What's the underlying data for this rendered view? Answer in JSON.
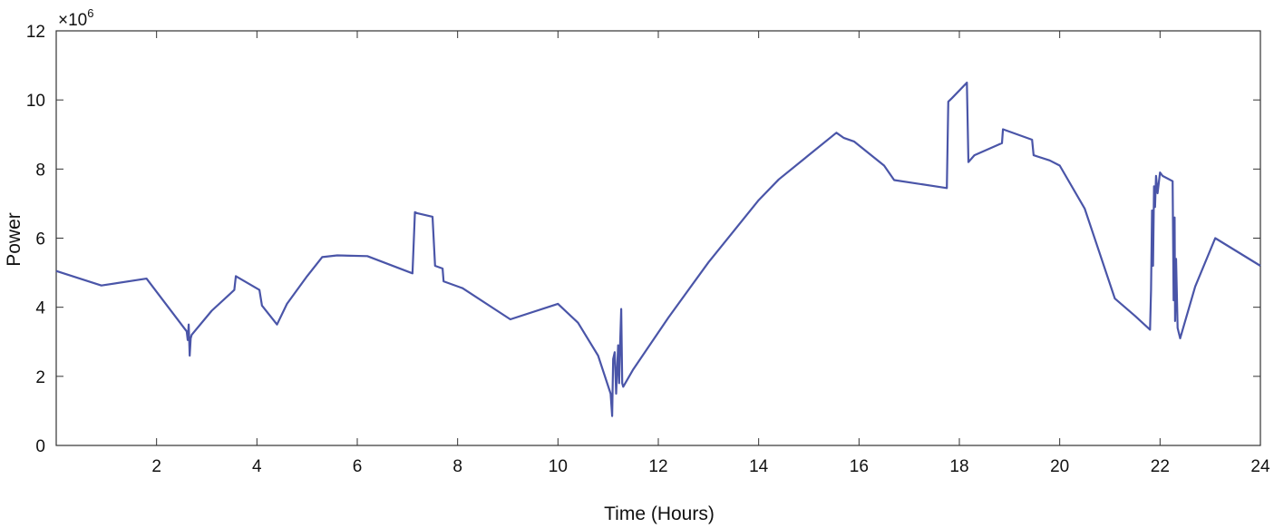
{
  "chart_data": {
    "type": "line",
    "title": "",
    "xlabel": "Time (Hours)",
    "ylabel": "Power",
    "y_multiplier_base": "×10",
    "y_multiplier_exponent": "6",
    "xlim": [
      0,
      24
    ],
    "ylim": [
      0,
      12
    ],
    "grid": false,
    "line_color": "#4a55a8",
    "x_ticks": [
      2,
      4,
      6,
      8,
      10,
      12,
      14,
      16,
      18,
      20,
      22,
      24
    ],
    "y_ticks": [
      0,
      2,
      4,
      6,
      8,
      10,
      12
    ],
    "series": [
      {
        "x": [
          0,
          0.9,
          1.8,
          2.6,
          2.62,
          2.64,
          2.66,
          2.68,
          2.7,
          3.1,
          3.55,
          3.58,
          4.05,
          4.1,
          4.4,
          4.6,
          5.0,
          5.3,
          5.6,
          6.2,
          7.1,
          7.15,
          7.2,
          7.5,
          7.55,
          7.7,
          7.72,
          8.1,
          9.05,
          10.0,
          10.4,
          10.8,
          11.05,
          11.08,
          11.1,
          11.13,
          11.16,
          11.2,
          11.22,
          11.24,
          11.26,
          11.28,
          11.3,
          11.5,
          12.2,
          13.0,
          14.0,
          14.4,
          15.55,
          15.7,
          15.9,
          16.5,
          16.7,
          17.75,
          17.78,
          17.85,
          18.15,
          18.18,
          18.3,
          18.85,
          18.87,
          19.45,
          19.48,
          19.8,
          20.0,
          20.5,
          21.1,
          21.5,
          21.8,
          21.82,
          21.84,
          21.86,
          21.88,
          21.9,
          21.92,
          21.95,
          22.0,
          22.05,
          22.25,
          22.27,
          22.29,
          22.3,
          22.32,
          22.35,
          22.4,
          22.7,
          23.1,
          24.0
        ],
        "y": [
          5.05,
          4.63,
          4.83,
          3.3,
          3.05,
          3.5,
          2.6,
          3.1,
          3.2,
          3.9,
          4.5,
          4.9,
          4.5,
          4.05,
          3.5,
          4.1,
          4.9,
          5.45,
          5.5,
          5.48,
          4.98,
          6.75,
          6.72,
          6.62,
          5.2,
          5.12,
          4.75,
          4.55,
          3.65,
          4.1,
          3.55,
          2.6,
          1.5,
          0.85,
          2.5,
          2.7,
          1.5,
          2.9,
          1.8,
          2.95,
          3.95,
          1.8,
          1.7,
          2.2,
          3.7,
          5.3,
          7.1,
          7.7,
          9.05,
          8.9,
          8.8,
          8.1,
          7.68,
          7.45,
          9.95,
          10.05,
          10.5,
          8.2,
          8.4,
          8.75,
          9.15,
          8.85,
          8.4,
          8.25,
          8.1,
          6.85,
          4.25,
          3.75,
          3.35,
          4.5,
          6.8,
          5.2,
          7.5,
          6.9,
          7.8,
          7.3,
          7.9,
          7.8,
          7.65,
          4.2,
          6.6,
          3.6,
          5.4,
          3.4,
          3.1,
          4.6,
          6.0,
          5.2
        ]
      }
    ]
  }
}
